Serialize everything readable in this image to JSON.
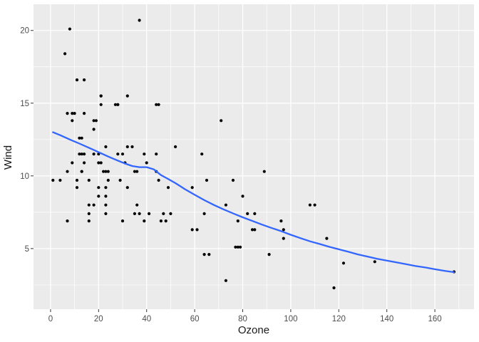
{
  "figure": {
    "background": "#FFFFFF",
    "panel_background": "#EBEBEB",
    "grid_color": "#FFFFFF",
    "tick_mark_color": "#333333",
    "tick_label_color": "#4D4D4D",
    "axis_title_color": "#1A1A1A",
    "point_color": "#000000",
    "smooth_line_color": "#3366FF"
  },
  "chart_data": {
    "type": "scatter",
    "title": "",
    "xlabel": "Ozone",
    "ylabel": "Wind",
    "xlim": [
      -7.1,
      176.3
    ],
    "ylim": [
      0.83,
      21.8
    ],
    "x_major_ticks": [
      0,
      20,
      40,
      60,
      80,
      100,
      120,
      140,
      160
    ],
    "x_minor_ticks": [
      10,
      30,
      50,
      70,
      90,
      110,
      130,
      150,
      170
    ],
    "y_major_ticks": [
      5,
      10,
      15,
      20
    ],
    "y_minor_ticks": [
      2.5,
      7.5,
      12.5,
      17.5
    ],
    "grid": true,
    "legend_position": "none",
    "points": [
      [
        41,
        7.4
      ],
      [
        36,
        8.0
      ],
      [
        12,
        12.6
      ],
      [
        18,
        11.5
      ],
      [
        28,
        14.9
      ],
      [
        23,
        8.6
      ],
      [
        19,
        13.8
      ],
      [
        8,
        20.1
      ],
      [
        7,
        6.9
      ],
      [
        16,
        9.7
      ],
      [
        11,
        9.2
      ],
      [
        14,
        10.9
      ],
      [
        18,
        13.2
      ],
      [
        14,
        11.5
      ],
      [
        34,
        12.0
      ],
      [
        6,
        18.4
      ],
      [
        30,
        11.5
      ],
      [
        11,
        9.7
      ],
      [
        1,
        9.7
      ],
      [
        11,
        16.6
      ],
      [
        4,
        9.7
      ],
      [
        32,
        12.0
      ],
      [
        23,
        12.0
      ],
      [
        45,
        14.9
      ],
      [
        115,
        5.7
      ],
      [
        37,
        7.4
      ],
      [
        29,
        9.7
      ],
      [
        71,
        13.8
      ],
      [
        39,
        11.5
      ],
      [
        23,
        8.0
      ],
      [
        21,
        14.9
      ],
      [
        37,
        20.7
      ],
      [
        20,
        9.2
      ],
      [
        12,
        11.5
      ],
      [
        13,
        10.3
      ],
      [
        135,
        4.1
      ],
      [
        49,
        9.2
      ],
      [
        32,
        9.2
      ],
      [
        64,
        4.6
      ],
      [
        40,
        10.9
      ],
      [
        77,
        5.1
      ],
      [
        97,
        6.3
      ],
      [
        97,
        5.7
      ],
      [
        85,
        7.4
      ],
      [
        10,
        14.3
      ],
      [
        27,
        14.9
      ],
      [
        7,
        14.3
      ],
      [
        48,
        6.9
      ],
      [
        35,
        10.3
      ],
      [
        61,
        6.3
      ],
      [
        79,
        5.1
      ],
      [
        63,
        11.5
      ],
      [
        16,
        6.9
      ],
      [
        80,
        8.6
      ],
      [
        108,
        8.0
      ],
      [
        20,
        8.6
      ],
      [
        52,
        12.0
      ],
      [
        82,
        7.4
      ],
      [
        50,
        7.4
      ],
      [
        64,
        7.4
      ],
      [
        59,
        9.2
      ],
      [
        39,
        6.9
      ],
      [
        9,
        13.8
      ],
      [
        16,
        7.4
      ],
      [
        78,
        6.9
      ],
      [
        35,
        7.4
      ],
      [
        66,
        4.6
      ],
      [
        122,
        4.0
      ],
      [
        89,
        10.3
      ],
      [
        110,
        8.0
      ],
      [
        44,
        11.5
      ],
      [
        28,
        11.5
      ],
      [
        65,
        9.7
      ],
      [
        22,
        10.3
      ],
      [
        59,
        6.3
      ],
      [
        23,
        7.4
      ],
      [
        31,
        10.9
      ],
      [
        44,
        10.3
      ],
      [
        21,
        15.5
      ],
      [
        9,
        14.3
      ],
      [
        45,
        9.7
      ],
      [
        168,
        3.4
      ],
      [
        73,
        8.0
      ],
      [
        76,
        9.7
      ],
      [
        118,
        2.3
      ],
      [
        84,
        6.3
      ],
      [
        85,
        6.3
      ],
      [
        96,
        6.9
      ],
      [
        78,
        5.1
      ],
      [
        73,
        2.8
      ],
      [
        91,
        4.6
      ],
      [
        47,
        7.4
      ],
      [
        32,
        15.5
      ],
      [
        20,
        10.9
      ],
      [
        23,
        10.3
      ],
      [
        21,
        10.9
      ],
      [
        24,
        9.7
      ],
      [
        44,
        14.9
      ],
      [
        21,
        15.5
      ],
      [
        28,
        14.9
      ],
      [
        9,
        10.9
      ],
      [
        13,
        11.5
      ],
      [
        46,
        6.9
      ],
      [
        18,
        13.8
      ],
      [
        13,
        10.3
      ],
      [
        24,
        10.3
      ],
      [
        16,
        8.0
      ],
      [
        13,
        12.6
      ],
      [
        23,
        9.2
      ],
      [
        36,
        10.3
      ],
      [
        7,
        10.3
      ],
      [
        14,
        16.6
      ],
      [
        30,
        6.9
      ],
      [
        14,
        14.3
      ],
      [
        18,
        8.0
      ],
      [
        20,
        11.5
      ]
    ],
    "smooth": {
      "method": "loess",
      "name": "loess smooth",
      "points": [
        [
          1,
          13.0
        ],
        [
          4,
          12.8
        ],
        [
          8,
          12.5
        ],
        [
          12,
          12.22
        ],
        [
          16,
          11.93
        ],
        [
          20,
          11.63
        ],
        [
          24,
          11.33
        ],
        [
          28,
          11.05
        ],
        [
          31,
          10.85
        ],
        [
          34,
          10.68
        ],
        [
          37,
          10.6
        ],
        [
          40,
          10.6
        ],
        [
          43,
          10.45
        ],
        [
          46,
          10.05
        ],
        [
          49,
          9.78
        ],
        [
          52,
          9.5
        ],
        [
          56,
          9.08
        ],
        [
          60,
          8.7
        ],
        [
          64,
          8.33
        ],
        [
          68,
          8.0
        ],
        [
          72,
          7.7
        ],
        [
          76,
          7.42
        ],
        [
          80,
          7.15
        ],
        [
          84,
          6.9
        ],
        [
          88,
          6.65
        ],
        [
          92,
          6.42
        ],
        [
          96,
          6.2
        ],
        [
          100,
          5.95
        ],
        [
          104,
          5.72
        ],
        [
          108,
          5.5
        ],
        [
          112,
          5.32
        ],
        [
          116,
          5.12
        ],
        [
          120,
          4.95
        ],
        [
          124,
          4.78
        ],
        [
          128,
          4.6
        ],
        [
          132,
          4.45
        ],
        [
          136,
          4.3
        ],
        [
          140,
          4.17
        ],
        [
          144,
          4.05
        ],
        [
          148,
          3.93
        ],
        [
          152,
          3.8
        ],
        [
          156,
          3.7
        ],
        [
          160,
          3.58
        ],
        [
          164,
          3.47
        ],
        [
          168,
          3.38
        ]
      ]
    }
  }
}
